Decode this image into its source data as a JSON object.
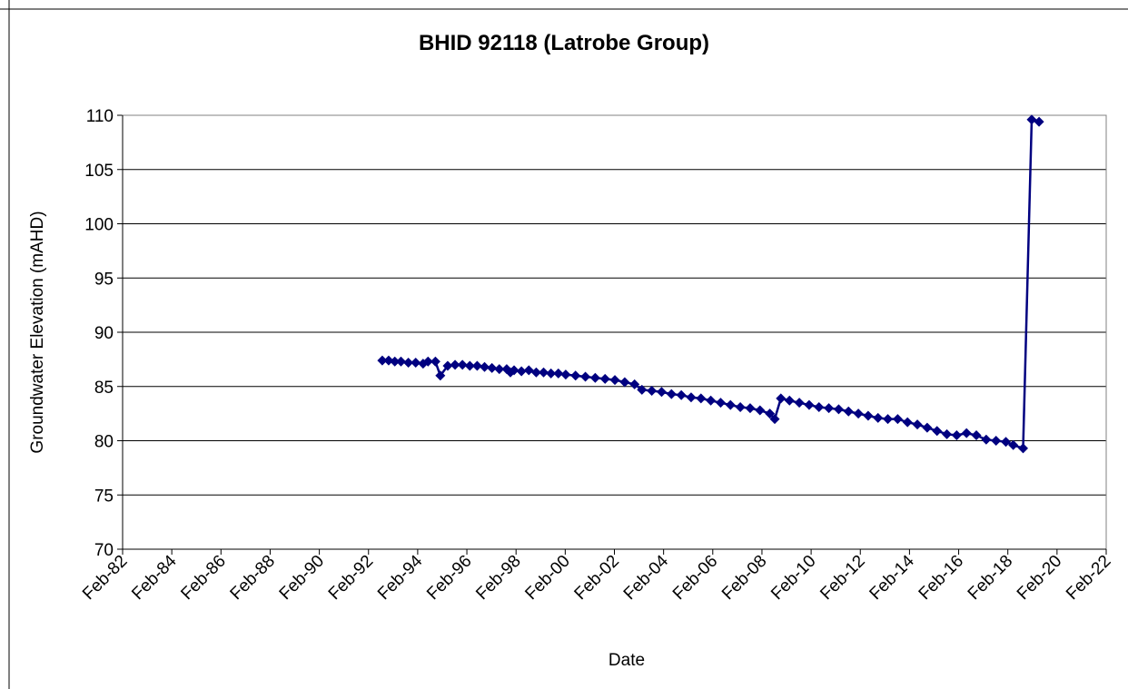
{
  "chart_data": {
    "type": "line",
    "title": "BHID 92118 (Latrobe Group)",
    "x_label": "Date",
    "y_label": "Groundwater Elevation  (mAHD)",
    "color": "#000080",
    "grid": true,
    "x": [
      1992.64,
      1992.9,
      1993.15,
      1993.4,
      1993.7,
      1994.0,
      1994.3,
      1994.5,
      1994.8,
      1995.0,
      1995.3,
      1995.6,
      1995.9,
      1996.2,
      1996.5,
      1996.8,
      1997.1,
      1997.4,
      1997.7,
      1997.85,
      1998.0,
      1998.3,
      1998.6,
      1998.9,
      1999.2,
      1999.5,
      1999.8,
      2000.1,
      2000.5,
      2000.9,
      2001.3,
      2001.7,
      2002.1,
      2002.5,
      2002.9,
      2003.2,
      2003.6,
      2004.0,
      2004.4,
      2004.8,
      2005.2,
      2005.6,
      2006.0,
      2006.4,
      2006.8,
      2007.2,
      2007.6,
      2008.0,
      2008.4,
      2008.6,
      2008.85,
      2009.2,
      2009.6,
      2010.0,
      2010.4,
      2010.8,
      2011.2,
      2011.6,
      2012.0,
      2012.4,
      2012.8,
      2013.2,
      2013.6,
      2014.0,
      2014.4,
      2014.8,
      2015.2,
      2015.6,
      2016.0,
      2016.4,
      2016.8,
      2017.2,
      2017.6,
      2018.0,
      2018.3,
      2018.7,
      2019.05,
      2019.35
    ],
    "values": [
      87.4,
      87.4,
      87.3,
      87.3,
      87.2,
      87.2,
      87.1,
      87.3,
      87.3,
      86.0,
      86.9,
      87.0,
      87.0,
      86.9,
      86.9,
      86.8,
      86.7,
      86.6,
      86.6,
      86.3,
      86.5,
      86.4,
      86.5,
      86.3,
      86.3,
      86.2,
      86.2,
      86.1,
      86.0,
      85.9,
      85.8,
      85.7,
      85.6,
      85.4,
      85.2,
      84.7,
      84.6,
      84.5,
      84.3,
      84.2,
      84.0,
      83.9,
      83.7,
      83.5,
      83.3,
      83.1,
      83.0,
      82.8,
      82.5,
      82.0,
      83.9,
      83.7,
      83.5,
      83.3,
      83.1,
      83.0,
      82.9,
      82.7,
      82.5,
      82.3,
      82.1,
      82.0,
      82.0,
      81.7,
      81.5,
      81.2,
      80.9,
      80.6,
      80.5,
      80.7,
      80.5,
      80.1,
      80.0,
      79.9,
      79.6,
      79.3,
      109.6,
      109.4
    ],
    "xlim": [
      1982.08,
      2022.08
    ],
    "xticks": [
      {
        "value": 1982.08,
        "label": "Feb-82"
      },
      {
        "value": 1984.08,
        "label": "Feb-84"
      },
      {
        "value": 1986.08,
        "label": "Feb-86"
      },
      {
        "value": 1988.08,
        "label": "Feb-88"
      },
      {
        "value": 1990.08,
        "label": "Feb-90"
      },
      {
        "value": 1992.08,
        "label": "Feb-92"
      },
      {
        "value": 1994.08,
        "label": "Feb-94"
      },
      {
        "value": 1996.08,
        "label": "Feb-96"
      },
      {
        "value": 1998.08,
        "label": "Feb-98"
      },
      {
        "value": 2000.08,
        "label": "Feb-00"
      },
      {
        "value": 2002.08,
        "label": "Feb-02"
      },
      {
        "value": 2004.08,
        "label": "Feb-04"
      },
      {
        "value": 2006.08,
        "label": "Feb-06"
      },
      {
        "value": 2008.08,
        "label": "Feb-08"
      },
      {
        "value": 2010.08,
        "label": "Feb-10"
      },
      {
        "value": 2012.08,
        "label": "Feb-12"
      },
      {
        "value": 2014.08,
        "label": "Feb-14"
      },
      {
        "value": 2016.08,
        "label": "Feb-16"
      },
      {
        "value": 2018.08,
        "label": "Feb-18"
      },
      {
        "value": 2020.08,
        "label": "Feb-20"
      },
      {
        "value": 2022.08,
        "label": "Feb-22"
      }
    ],
    "ylim": [
      70,
      110
    ],
    "yticks": [
      70,
      75,
      80,
      85,
      90,
      95,
      100,
      105,
      110
    ]
  }
}
